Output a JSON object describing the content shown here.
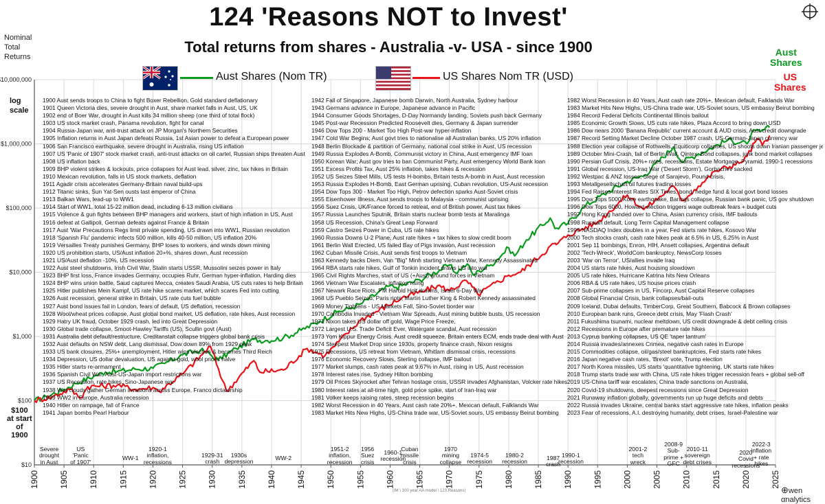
{
  "title": "124 'Reasons NOT to Invest'",
  "subtitle": "Total returns from shares - Australia -v- USA - since 1900",
  "ylabel_lines": [
    "Nominal",
    "Total",
    "Returns"
  ],
  "log_scale_lines": [
    "log",
    "scale"
  ],
  "start_note_lines": [
    "$100",
    "at start",
    "of",
    "1900"
  ],
  "legend": {
    "aus_label": "Aust Shares (Nom TR)",
    "us_label": "US Shares Nom TR (USD)",
    "aus_flag_icon": "australia-flag-icon",
    "us_flag_icon": "usa-flag-icon"
  },
  "series_tags": {
    "aus": [
      "Aust",
      "Shares"
    ],
    "us": [
      "US",
      "Shares"
    ]
  },
  "colors": {
    "aus": "#0b9b1e",
    "us": "#e8141a",
    "grid": "#d8d8d8",
    "axis": "#555555"
  },
  "credit": "(IM \\ 100 year AA model \\ 123 Reasons)",
  "brand": "wen αnalytics",
  "brand_icon": "owen-analytics-logo-icon",
  "periods": [
    {
      "lines": [
        "Severe",
        "drought",
        "in Aust"
      ],
      "x": 1902.5,
      "top": 650
    },
    {
      "lines": [
        "US",
        "'Panic",
        "of 1907'"
      ],
      "x": 1907.8,
      "top": 650
    },
    {
      "lines": [
        "WW-1"
      ],
      "x": 1916.2,
      "top": 663
    },
    {
      "lines": [
        "1920-1",
        "inflation,",
        "recessions"
      ],
      "x": 1920.8,
      "top": 650
    },
    {
      "lines": [
        "1929-31",
        "crash"
      ],
      "x": 1930,
      "top": 659
    },
    {
      "lines": [
        "1930s",
        "depression"
      ],
      "x": 1934.5,
      "top": 659
    },
    {
      "lines": [
        "WW-2"
      ],
      "x": 1942,
      "top": 663
    },
    {
      "lines": [
        "1951-2",
        "inflation,",
        "recession"
      ],
      "x": 1951.5,
      "top": 650
    },
    {
      "lines": [
        "1956",
        "Suez",
        "crisis"
      ],
      "x": 1956.2,
      "top": 650
    },
    {
      "lines": [
        "1960-1",
        "recession"
      ],
      "x": 1960.5,
      "top": 655
    },
    {
      "lines": [
        "Cuban",
        "missile",
        "crisis"
      ],
      "x": 1963.3,
      "top": 650
    },
    {
      "lines": [
        "1970",
        "mining",
        "collapse"
      ],
      "x": 1970.2,
      "top": 650
    },
    {
      "lines": [
        "1974-5",
        "recession"
      ],
      "x": 1975.1,
      "top": 659
    },
    {
      "lines": [
        "1980-2",
        "recession"
      ],
      "x": 1981,
      "top": 659
    },
    {
      "lines": [
        "1987",
        "crash"
      ],
      "x": 1987.5,
      "top": 663
    },
    {
      "lines": [
        "1990-1",
        "recession"
      ],
      "x": 1990.5,
      "top": 659
    },
    {
      "lines": [
        "2001-2",
        "tech",
        "wreck"
      ],
      "x": 2001.8,
      "top": 650
    },
    {
      "lines": [
        "2008-9",
        "Sub-",
        "prime +",
        "GFC"
      ],
      "x": 2007.8,
      "top": 643
    },
    {
      "lines": [
        "2010-11",
        "sovereign",
        "debt crises"
      ],
      "x": 2011.8,
      "top": 650
    },
    {
      "lines": [
        "2020",
        "Covid",
        "recessions"
      ],
      "x": 2020,
      "top": 655
    },
    {
      "lines": [
        "2022-3",
        "inflation",
        "+ rate",
        "hikes"
      ],
      "x": 2022.6,
      "top": 643
    }
  ],
  "events": [
    [
      "1900 Aust sends troops to China to fight Boxer Rebellion, Gold standard deflationary",
      "1901 Queen Victoria dies, severe drought in Aust, share market falls in Aust, US, UK",
      "1902 end of Boer War, drought in Aust kills 34 million sheep (one third of total flock)",
      "1903 US stock market crash, Panama revolution, fight for canal",
      "1904 Russia-Japan war, anti-trust attack on JP Morgan's Northern Securities",
      "1905 Inflation returns in Aust Japan defeats Russia, 1st Asian power to defeat a European power",
      "1906 San Francisco earthquake, severe drought in Australia, rising US inflation",
      "1907 US 'Panic of 1907' stock market crash, anti-trust attacks on oil cartel, Russian ships threaten Aust",
      "1908 US inflation back",
      "1909 BHP violent strikes & lockouts, price collapses for Aust lead, silver, zinc, tax hikes in Britain",
      "1910 Mexican revolution, falls in US stock markets, deflation",
      "1911 Agadir crisis accelerates Germany-Britain naval build-ups",
      "1912 Titanic sinks, Sun Yat-Sen ousts last emperor of China",
      "1913 Balkan Wars, lead-up to WW1",
      "1914 Start of WW1, total 15-22 million dead, including 6-13 million civilians",
      "1915 Violence & gun fights between BHP managers and workers, start of high inflation in US, Aust",
      "1916 defeat at Gallipoli, German defeats against France & Britain",
      "1917 Aust 'War Precautions Regs limit private spending, US drawn into WW1, Russian revolution",
      "1918 'Spanish Flu' pandemic infects 500 million, kills 40-50 million, US inflation 20%",
      "1919 Versailles Treaty punishes Germany, BHP loses to workers, and winds down mining",
      "1920 US prohibition starts, US/Aust inflation 20+%, shares down, Aust recession",
      "1921 US/Aust deflation -10%, US recession",
      "1922 Aust steel shutdowns, Irish Civil War, Stalin starts USSR, Mussolini seizes power in Italy",
      "1923 BHP first loss, France invades Germany, occupies Ruhr, German hyper-inflation, Harding dies",
      "1924 BHP wins union battle, Saud captures Mecca, creates Saudi Arabia, US cuts rates to help Britain",
      "1925 Hitler publishes Mein Kampf, US rate hike scares market, which scares Fed into cutting",
      "1926 Aust recession, general strike in Britain, US rate cuts fuel bubble",
      "1927 Aust bond issues fail in London, fears of default, US deflation, recession",
      "1928 Wool/wheat prices collapse, Aust global bond market, US deflation, rate hikes, Aust recession",
      "1929 Hatry UK fraud, October 1929 crash, led into Great Depression",
      "1930 Global trade collapse, Smoot-Hawley Tariffs (US), Scullin govt (Aust)",
      "1931 Australia debt default/restructure, Creditanstalt collapse triggers global bank crisis",
      "1932 Aust defaults on NSW debt, Lang dismissal, Dow down 89% from 1929 peak",
      "1933 US bank closures, 25%+ unemployment, Hitler wins election & becomes Third Reich",
      "1934 Depression, US dollar devaluation, US against gold, wool prices halve",
      "1935 Hitler starts re-armament",
      "1936 Spanish Civil War, Aust-US-Japan import restrictions war",
      "1937 US Recession, rate hikes, Sino-Japanese war",
      "1938 War clouds gather German invasions across Europe, Franco dictatorship",
      "1939 WW2 in Europe, Australia recession",
      "1940 Hitler on rampage, fall of France",
      "1941 Japan bombs Pearl Harbour"
    ],
    [
      "1942 Fall of Singapore, Japanese bomb Darwin, North Australia, Sydney harbour",
      "1943 Germans advance in Europe, Japanese advance in Pacific",
      "1944 Consumer Goods Shortages, D-Day Normandy landing, Soviets push back Germany",
      "1945 Post-war Recession Predicted Roosevelt dies, Germany & Japan surrender",
      "1946 Dow Tops 200 - Market Too High Post-war hyper-inflation",
      "1947 Cold War Begins; Aust govt tries to nationalise all Australian banks, US 20% inflation",
      "1948 Berlin Blockade & partition of Germany, national coal strike in Aust, US recession",
      "1949 Russia Explodes A-Bomb, Communist victory in China, Aust emergency IMF loan",
      "1950 Korean War; Aust gov tries to ban Communist Party, Aust emergency World Bank loan",
      "1951 Excess Profits Tax, Aust 25% inflation, takes hikes & recession",
      "1952 US Seizes Steel Mills, US tests H-bombs, Britain tests A-bomb in Aust, Aust recession",
      "1953 Russia Explodes H-Bomb, East German uprising, Cuban revolution, US-Aust recession",
      "1954 Dow Tops 300 - Market Too High, Petrov defection sparks Aust-Soviet crisis",
      "1955 Eisenhower Illness, Aust sends troops to Malaysia - communist uprising",
      "1956 Suez Crisis, UK/France forced to retreat, end of British power, Aust tax hikes",
      "1957 Russia Launches Sputnik, Britain starts nuclear bomb tests at Maralinga",
      "1958 US Recession, China's Great Leap Forward",
      "1959 Castro Seizes Power in Cuba, US rate hikes",
      "1960 Russia Downs U-2 Plane, Aust rate hikes + tax hikes to slow credit boom",
      "1961 Berlin Wall Erected, US failed Bay of Pigs invasion, Aust recession",
      "1962 Cuban Missile Crisis, Aust sends first troops to Vietnam",
      "1963 Kennedy backs Diem, Van \"Big\" Minh starting Vietnam War, Kennedy Assassinated",
      "1964 RBA starts rate hikes, Gulf of Tonkin incident draws US into war",
      "1965 Civil Rights Marches, start of US (+Aust) ground forces in Vietnam",
      "1966 Vietnam War Escalates, inflation rising",
      "1967 Newark Race Riots, PM Harold Holt drowns, Israel 6-Day War",
      "1968 US Pueblo Seized; Paris riots, Martin Luther King & Robert Kennedy assassinated",
      "1969 Money Tightens - US Markets Fall, Sino-Soviet border war",
      "1970 Cambodia Invaded - Vietnam War Spreads, Aust mining bubble busts, US recession",
      "1971 Nixon takes US dollar off gold, Wage Price Freeze,",
      "1972 Largest U.S. Trade Deficit Ever, Watergate scandal, Aust recession",
      "1973 Yom Kippur Energy Crisis, Aust credit squeeze, Britain enters ECM, ends trade deal with Aust",
      "1974 Steepest Market Drop since 1930s, property finance crash, Nixon resigns",
      "1975 Recessions, US retreat from Vietnam, Whitlam dismissal crisis, recessions",
      "1976 Economic Recovery Slows, Sterling collapse, IMF bailout",
      "1977 Market slumps, cash rates peak at 9.67% in Aust, rising in US, Aust recession",
      "1978 Interest rates rise, Sydney Hilton bombing",
      "1979 Oil Prices Skyrocket after Tehran hostage crisis, USSR invades Afghanistan, Volcker rate hikes",
      "1980 Interest rates at all-time high, gold price spike, start of Iran-Iraq war",
      "1981 Volker keeps raising rates, steep recession begins",
      "1982 Worst Recession in 40 Years, Aust cash rate 20%+, Mexican default, Falklands War",
      "1983 Market Hits New Highs, US-China trade war, US-Soviet sours, US embassy Beirut bombing"
    ],
    [
      "1982 Worst Recession in 40 Years, Aust cash rate 20%+, Mexican default, Falklands War",
      "1983 Market Hits New Highs, US-China trade war, US-Soviet sours, US embassy Beirut bombing",
      "1984 Record Federal Deficits Continental Illinois bailout",
      "1985 Economic Growth Slows, US cuts rate hikes, Plaza Accord to bring down USD",
      "1986 Dow nears 2000 'Banana Republic' current account & AUD crisis, Aust credit downgrade",
      "1987 Record Setting Market Decline October 1987 crash, US-German-Japan currency war",
      "1988 Election year collapse of Rothwells, Equiticorp collapses, US shoots down Iranian passenger jet",
      "1989 October Mini-Crash, fall of Berlin Wall, Qintex, Bond collapses, junk bond market collapses",
      "1990 Persian Gulf Crisis, 20%+ rates, recessions, Estate Mortgage, Pyramid, 1990-1 recessions",
      "1991 Global recession, US-Iraq War ('Desert Storm'), Gorbachev sacked",
      "1992 Westpac & ANZ losses, Siege of Sarajevo, Pound crisis,",
      "1993 Metallgesellschaft oil futures trading losses",
      "1994 Fed Raises Interest Rates SIX Times, bond, hedge fund & local govt bond losses",
      "1995 Dow Tops 5000 Kobe earthquake, Barings collapse, Russian bank panic, US gov shutdown",
      "1996 Dow Tops 6000, Howard election triggers wage outbreak fears + budget cuts",
      "1997 Hong Kong handed over to China, Asian currency crisis, IMF bailouts",
      "1998 Russian default, Long Term Capital Management collapse",
      "1999 NASDAQ Index doubles in a year, Fed starts rate hikes, Kosovo War",
      "2000 Tech stocks crash, cash rate hikes peak at 6.5% in US, 6.25% in Aust",
      "2001 Sep 11 bombings, Enron, HIH, Ansett collapses, Argentina default",
      "2002 'Tech-Wreck', WorldCom bankruptcy, NewsCorp losses",
      "2003 'War on Terror', US/allies invade Iraq",
      "2004 US starts rate hikes, Aust housing slowdown",
      "2005 US rate hikes, Hurricane Katrina hits New Orleans",
      "2006 RBA & US rate hikes, US house prices crash",
      "2007 Sub-prime collapses in US, Fincorp, Aust Capital Reserve collapses",
      "2008 Global Financial Crisis, bank collapses/bail-outs",
      "2009 Iceland, Dubai defaults, TimberCorp, Great Southern, Babcock & Brown collapses",
      "2010 European bank runs, Greece debt crisis, May 'Flash Crash'",
      "2011 Fukushima tsunami, nuclear meltdown, US credit downgrade & debt ceiling crisis",
      "2012 Recessions in Europe after premature rate hikes",
      "2013 Cyprus banking collapses, US QE 'taper tantrum'",
      "2014 Russia invades/annexes Crimea, negative cash rates in Europe",
      "2015 Commodities collapse, oil/gas/steel bankruptcies, Fed starts rate hikes",
      "2016 Japan negative cash rates, 'Brexit' vote, Trump election",
      "2017 North Korea missiles, US starts 'quantitative tightening, UK starts rate hikes",
      "2018 Trump starts trade war with China, US rate hikes trigger recession fears + global sell-off",
      "2019 US-China tariff war escalates, China trade sanctions on Australia,",
      "2020 Covid-19 shutdowns, deepest recessions since Great Depression",
      "2021 Runaway inflation globally, governments run up huge deficits and debts",
      "2022 Russia invades Ukraine, central banks start aggressive rate hikes, inflation peaks",
      "2023 Fear of recessions, A.I. destroying humanity, debt crises, Israel-Palestine war"
    ]
  ],
  "chart_data": {
    "type": "line",
    "title": "124 'Reasons NOT to Invest'",
    "subtitle": "Total returns from shares - Australia -v- USA - since 1900",
    "ylabel": "Nominal Total Returns",
    "yscale": "log",
    "ylim": [
      10,
      10000000
    ],
    "xlim": [
      1900,
      2025
    ],
    "grid": true,
    "legend_position": "top-left",
    "x_ticks": [
      1900,
      1905,
      1910,
      1915,
      1920,
      1925,
      1930,
      1935,
      1940,
      1945,
      1950,
      1955,
      1960,
      1965,
      1970,
      1975,
      1980,
      1985,
      1990,
      1995,
      2000,
      2005,
      2010,
      2015,
      2020,
      2025
    ],
    "y_ticks": [
      {
        "value": 10,
        "label": "$10"
      },
      {
        "value": 100,
        "label": "$100"
      },
      {
        "value": 1000,
        "label": "$1,000"
      },
      {
        "value": 10000,
        "label": "$10,000"
      },
      {
        "value": 100000,
        "label": "$100,000"
      },
      {
        "value": 1000000,
        "label": "$1,000,000"
      },
      {
        "value": 10000000,
        "label": "$10,000,000"
      }
    ],
    "series": [
      {
        "name": "Aust Shares (Nom TR)",
        "color": "#0b9b1e",
        "x": [
          1900,
          1902,
          1905,
          1907,
          1910,
          1912,
          1914,
          1917,
          1920,
          1922,
          1925,
          1928,
          1929,
          1931,
          1934,
          1937,
          1939,
          1942,
          1945,
          1948,
          1951,
          1953,
          1955,
          1960,
          1961,
          1965,
          1970,
          1971,
          1973,
          1974,
          1975,
          1977,
          1980,
          1981,
          1983,
          1987,
          1987.8,
          1990,
          1993,
          1997,
          2000,
          2003,
          2007.8,
          2009.2,
          2012,
          2017,
          2020.2,
          2021,
          2022.5,
          2024
        ],
        "values": [
          100,
          115,
          150,
          185,
          240,
          280,
          285,
          310,
          320,
          380,
          520,
          610,
          570,
          430,
          650,
          900,
          860,
          950,
          1250,
          1700,
          2400,
          2700,
          3200,
          6200,
          5800,
          7600,
          13000,
          9800,
          13500,
          9000,
          10500,
          13000,
          24000,
          18000,
          32000,
          70000,
          48000,
          58000,
          110000,
          185000,
          260000,
          330000,
          900000,
          520000,
          700000,
          1150000,
          1000000,
          1500000,
          1550000,
          1800000
        ]
      },
      {
        "name": "US Shares Nom TR (USD)",
        "color": "#e8141a",
        "x": [
          1900,
          1903,
          1906,
          1907.8,
          1909,
          1914,
          1917,
          1920,
          1921,
          1925,
          1929.7,
          1932.4,
          1937,
          1938,
          1942,
          1946,
          1949,
          1955,
          1962,
          1966,
          1968,
          1970,
          1972.9,
          1974.8,
          1980,
          1982,
          1987.7,
          1988,
          1990,
          1995,
          2000,
          2002.8,
          2007.8,
          2009.2,
          2012,
          2015,
          2018.9,
          2020.2,
          2021.9,
          2022.8,
          2024
        ],
        "values": [
          100,
          115,
          150,
          110,
          165,
          175,
          150,
          160,
          140,
          260,
          700,
          140,
          420,
          280,
          300,
          650,
          500,
          1800,
          4000,
          5200,
          6200,
          5200,
          7400,
          4500,
          9000,
          10000,
          28000,
          27000,
          38000,
          60000,
          160000,
          95000,
          220000,
          130000,
          220000,
          380000,
          500000,
          640000,
          1200000,
          950000,
          1350000
        ]
      }
    ],
    "annotations": [
      "Aust Shares",
      "US Shares"
    ]
  }
}
